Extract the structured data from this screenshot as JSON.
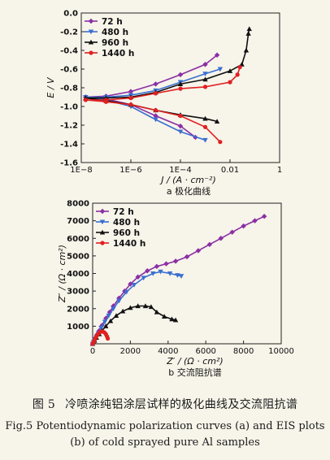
{
  "figure": {
    "label_cn": "图 5",
    "caption_cn": "冷喷涂纯铝涂层试样的极化曲线及交流阻抗谱",
    "caption_en_line1": "Fig.5 Potentiodynamic polarization curves (a) and EIS plots",
    "caption_en_line2": "(b) of cold sprayed pure Al samples"
  },
  "colors": {
    "72 h": "#8b2fa3",
    "480 h": "#3a6fd0",
    "960 h": "#111111",
    "1440 h": "#e02020"
  },
  "chart_data": [
    {
      "type": "line",
      "subcaption": "a 极化曲线",
      "ylabel": "E / V",
      "xlabel": "J / (A · cm⁻²)",
      "xscale": "log",
      "xlim": [
        1e-08,
        1
      ],
      "ylim": [
        -1.6,
        0
      ],
      "xticks": [
        1e-08,
        1e-06,
        0.0001,
        0.01,
        1
      ],
      "xtick_labels": [
        "1E−8",
        "1E−6",
        "1E−4",
        "0.01",
        "1"
      ],
      "yticks": [
        -1.6,
        -1.4,
        -1.2,
        -1.0,
        -0.8,
        -0.6,
        -0.4,
        -0.2,
        0.0
      ],
      "ytick_labels": [
        "-1.6",
        "-1.4",
        "-1.2",
        "-1.0",
        "-0.8",
        "-0.6",
        "-0.4",
        "-0.2",
        "0.0"
      ],
      "legend_position": "top-left",
      "series": [
        {
          "name": "72 h",
          "marker": "diamond",
          "anodic": [
            [
              1.5e-08,
              -0.9
            ],
            [
              1e-07,
              -0.89
            ],
            [
              1e-06,
              -0.84
            ],
            [
              1e-05,
              -0.76
            ],
            [
              0.0001,
              -0.66
            ],
            [
              0.001,
              -0.55
            ],
            [
              0.003,
              -0.45
            ]
          ],
          "cathodic": [
            [
              1.5e-08,
              -0.9
            ],
            [
              1e-07,
              -0.92
            ],
            [
              1e-06,
              -0.98
            ],
            [
              1e-05,
              -1.1
            ],
            [
              0.0001,
              -1.21
            ],
            [
              0.0004,
              -1.33
            ]
          ]
        },
        {
          "name": "480 h",
          "marker": "triangle-down",
          "anodic": [
            [
              1.5e-08,
              -0.9
            ],
            [
              1e-07,
              -0.9
            ],
            [
              1e-06,
              -0.88
            ],
            [
              1e-05,
              -0.83
            ],
            [
              0.0001,
              -0.74
            ],
            [
              0.001,
              -0.65
            ],
            [
              0.004,
              -0.6
            ]
          ],
          "cathodic": [
            [
              1.5e-08,
              -0.9
            ],
            [
              1e-07,
              -0.93
            ],
            [
              1e-06,
              -1.0
            ],
            [
              1e-05,
              -1.14
            ],
            [
              0.0001,
              -1.27
            ],
            [
              0.001,
              -1.36
            ]
          ]
        },
        {
          "name": "960 h",
          "marker": "triangle-up",
          "anodic": [
            [
              1.5e-08,
              -0.91
            ],
            [
              1e-07,
              -0.91
            ],
            [
              1e-06,
              -0.9
            ],
            [
              1e-05,
              -0.85
            ],
            [
              0.0001,
              -0.76
            ],
            [
              0.001,
              -0.71
            ],
            [
              0.01,
              -0.62
            ],
            [
              0.03,
              -0.55
            ],
            [
              0.045,
              -0.4
            ],
            [
              0.055,
              -0.22
            ],
            [
              0.06,
              -0.17
            ]
          ],
          "cathodic": [
            [
              1.5e-08,
              -0.91
            ],
            [
              1e-07,
              -0.94
            ],
            [
              1e-06,
              -0.98
            ],
            [
              1e-05,
              -1.04
            ],
            [
              0.0001,
              -1.09
            ],
            [
              0.001,
              -1.13
            ],
            [
              0.003,
              -1.16
            ]
          ]
        },
        {
          "name": "1440 h",
          "marker": "circle",
          "anodic": [
            [
              1.5e-08,
              -0.93
            ],
            [
              1e-07,
              -0.93
            ],
            [
              1e-06,
              -0.91
            ],
            [
              1e-05,
              -0.86
            ],
            [
              0.0001,
              -0.81
            ],
            [
              0.001,
              -0.79
            ],
            [
              0.01,
              -0.74
            ],
            [
              0.02,
              -0.66
            ],
            [
              0.025,
              -0.58
            ]
          ],
          "cathodic": [
            [
              1.5e-08,
              -0.93
            ],
            [
              1e-07,
              -0.95
            ],
            [
              1e-06,
              -0.98
            ],
            [
              1e-05,
              -1.04
            ],
            [
              0.0001,
              -1.1
            ],
            [
              0.001,
              -1.22
            ],
            [
              0.004,
              -1.38
            ]
          ]
        }
      ]
    },
    {
      "type": "scatter",
      "subcaption": "b 交流阻抗谱",
      "ylabel": "Z″ / (Ω · cm²)",
      "xlabel": "Z′ / (Ω · cm²)",
      "xlim": [
        0,
        10000
      ],
      "ylim": [
        0,
        8000
      ],
      "xticks": [
        0,
        2000,
        4000,
        6000,
        8000,
        10000
      ],
      "xtick_labels": [
        "0",
        "2000",
        "4000",
        "6000",
        "8000",
        "10000"
      ],
      "yticks": [
        1000,
        2000,
        3000,
        4000,
        5000,
        6000,
        7000,
        8000
      ],
      "ytick_labels": [
        "1000",
        "2000",
        "3000",
        "4000",
        "5000",
        "6000",
        "7000",
        "8000"
      ],
      "legend_position": "top-left",
      "series": [
        {
          "name": "72 h",
          "marker": "diamond",
          "points": [
            [
              0,
              0
            ],
            [
              50,
              100
            ],
            [
              100,
              200
            ],
            [
              150,
              350
            ],
            [
              250,
              550
            ],
            [
              350,
              750
            ],
            [
              500,
              1050
            ],
            [
              700,
              1450
            ],
            [
              900,
              1800
            ],
            [
              1100,
              2150
            ],
            [
              1400,
              2600
            ],
            [
              1700,
              3000
            ],
            [
              2000,
              3400
            ],
            [
              2400,
              3800
            ],
            [
              2900,
              4150
            ],
            [
              3400,
              4400
            ],
            [
              3900,
              4550
            ],
            [
              4400,
              4700
            ],
            [
              5000,
              4950
            ],
            [
              5600,
              5300
            ],
            [
              6200,
              5650
            ],
            [
              6800,
              6000
            ],
            [
              7400,
              6350
            ],
            [
              8000,
              6700
            ],
            [
              8600,
              7000
            ],
            [
              9100,
              7250
            ]
          ]
        },
        {
          "name": "480 h",
          "marker": "triangle-down",
          "points": [
            [
              0,
              0
            ],
            [
              50,
              100
            ],
            [
              100,
              200
            ],
            [
              200,
              400
            ],
            [
              300,
              600
            ],
            [
              450,
              900
            ],
            [
              650,
              1250
            ],
            [
              850,
              1600
            ],
            [
              1100,
              2000
            ],
            [
              1400,
              2450
            ],
            [
              1800,
              2950
            ],
            [
              2200,
              3350
            ],
            [
              2700,
              3750
            ],
            [
              3200,
              4000
            ],
            [
              3600,
              4100
            ],
            [
              4100,
              4000
            ],
            [
              4500,
              3900
            ],
            [
              4700,
              3850
            ]
          ]
        },
        {
          "name": "960 h",
          "marker": "triangle-up",
          "points": [
            [
              0,
              0
            ],
            [
              50,
              100
            ],
            [
              100,
              180
            ],
            [
              200,
              350
            ],
            [
              350,
              550
            ],
            [
              500,
              750
            ],
            [
              700,
              1000
            ],
            [
              950,
              1300
            ],
            [
              1250,
              1600
            ],
            [
              1600,
              1850
            ],
            [
              2000,
              2050
            ],
            [
              2400,
              2150
            ],
            [
              2800,
              2150
            ],
            [
              3100,
              2100
            ],
            [
              3400,
              1800
            ],
            [
              3800,
              1550
            ],
            [
              4200,
              1400
            ],
            [
              4400,
              1350
            ]
          ]
        },
        {
          "name": "1440 h",
          "marker": "circle",
          "points": [
            [
              0,
              0
            ],
            [
              50,
              100
            ],
            [
              100,
              200
            ],
            [
              160,
              350
            ],
            [
              230,
              480
            ],
            [
              320,
              600
            ],
            [
              420,
              680
            ],
            [
              520,
              700
            ],
            [
              620,
              650
            ],
            [
              700,
              550
            ],
            [
              760,
              420
            ],
            [
              800,
              300
            ]
          ]
        }
      ]
    }
  ]
}
